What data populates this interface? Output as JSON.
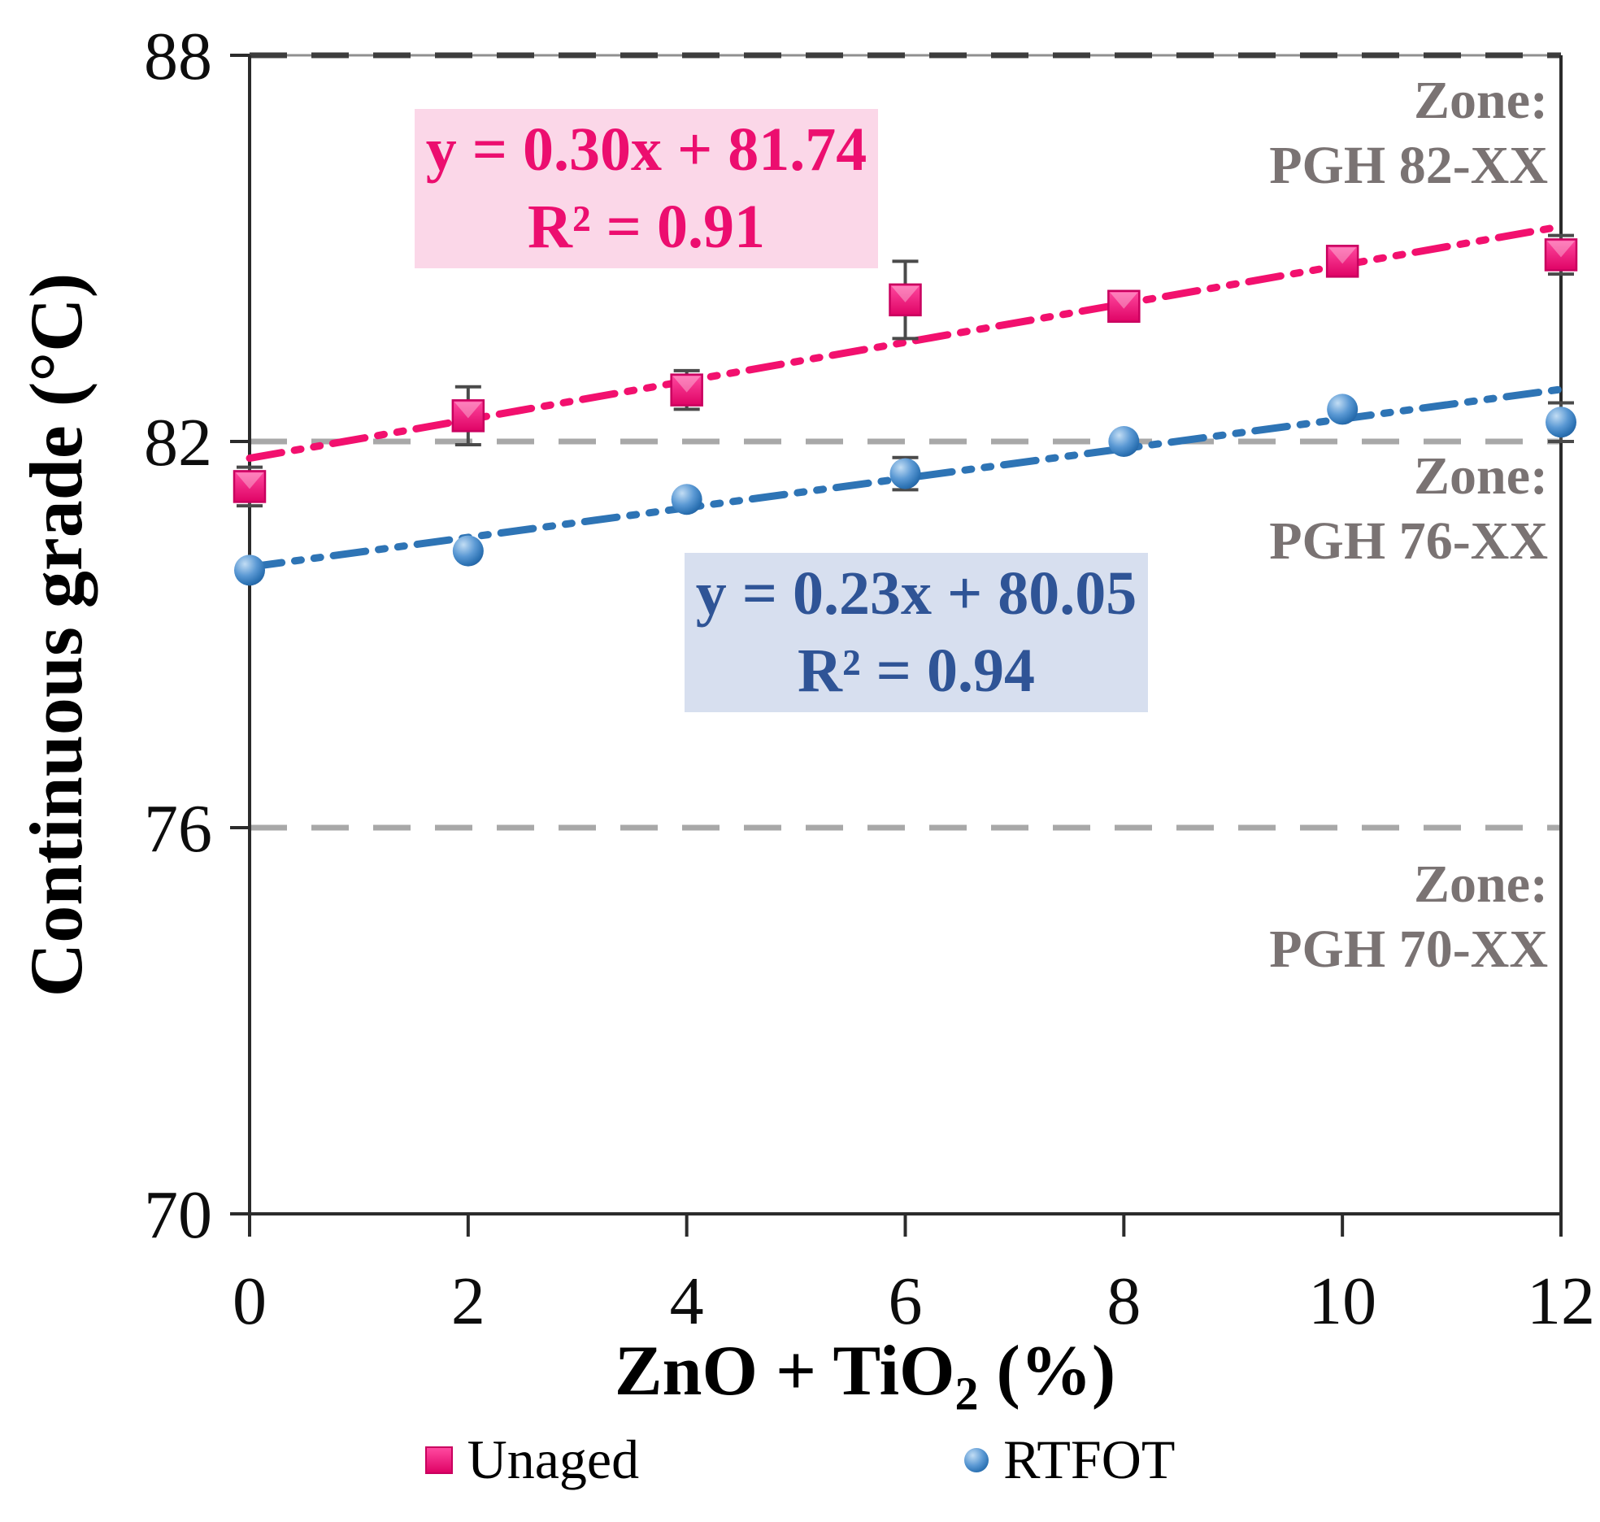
{
  "chart_data": {
    "type": "scatter",
    "title": "",
    "ylabel": "Continuous grade (°C)",
    "xlabel": {
      "prefix": "ZnO + TiO",
      "sub": "2",
      "suffix": " (%)"
    },
    "xlim": [
      0,
      12
    ],
    "ylim": [
      70,
      88
    ],
    "x_ticks": [
      0,
      2,
      4,
      6,
      8,
      10,
      12
    ],
    "y_ticks": [
      70,
      76,
      82,
      88
    ],
    "grid": false,
    "x": [
      0,
      2,
      4,
      6,
      8,
      10,
      12
    ],
    "series": [
      {
        "name": "Unaged",
        "marker": "square",
        "color": "#F2106E",
        "values": [
          81.3,
          82.4,
          82.8,
          84.2,
          84.1,
          84.8,
          84.9
        ],
        "error_bars": [
          0.3,
          0.45,
          0.3,
          0.6,
          null,
          null,
          0.3
        ],
        "trend": {
          "slope": 0.3,
          "intercept": 81.74,
          "r2": 0.91,
          "equation_label": "y = 0.30x + 81.74",
          "r2_label": "R² = 0.91"
        }
      },
      {
        "name": "RTFOT",
        "marker": "circle",
        "color": "#2E74B5",
        "values": [
          80.0,
          80.3,
          81.1,
          81.5,
          82.0,
          82.5,
          82.3
        ],
        "error_bars": [
          null,
          null,
          null,
          0.25,
          null,
          null,
          0.3
        ],
        "trend": {
          "slope": 0.23,
          "intercept": 80.05,
          "r2": 0.94,
          "equation_label": "y = 0.23x + 80.05",
          "r2_label": "R² = 0.94"
        }
      }
    ],
    "reference_lines": [
      {
        "y": 88,
        "style": "dashed",
        "color": "#3D3D3D"
      },
      {
        "y": 82,
        "style": "dashed",
        "color": "#A8A8A8"
      },
      {
        "y": 76,
        "style": "dashed",
        "color": "#A8A8A8"
      }
    ],
    "zones": [
      {
        "line1": "Zone:",
        "line2": "PGH 82-XX"
      },
      {
        "line1": "Zone:",
        "line2": "PGH 76-XX"
      },
      {
        "line1": "Zone:",
        "line2": "PGH 70-XX"
      }
    ],
    "legend": {
      "position": "bottom",
      "items": [
        "Unaged",
        "RTFOT"
      ]
    }
  },
  "colors": {
    "unaged_pink": "#F2106E",
    "rtfot_blue": "#2E74B5",
    "eq_pink_bg": "#FBD7E8",
    "eq_pink_text": "#EC0E6F",
    "eq_blue_bg": "#D7DFEF",
    "eq_blue_text": "#2F5496",
    "zone_gray": "#7A7373",
    "gridline_gray": "#A8A8A8",
    "top_line_dark": "#3D3D3D",
    "axis_black": "#2B2B2B",
    "error_bar_gray": "#4A4A4A"
  }
}
